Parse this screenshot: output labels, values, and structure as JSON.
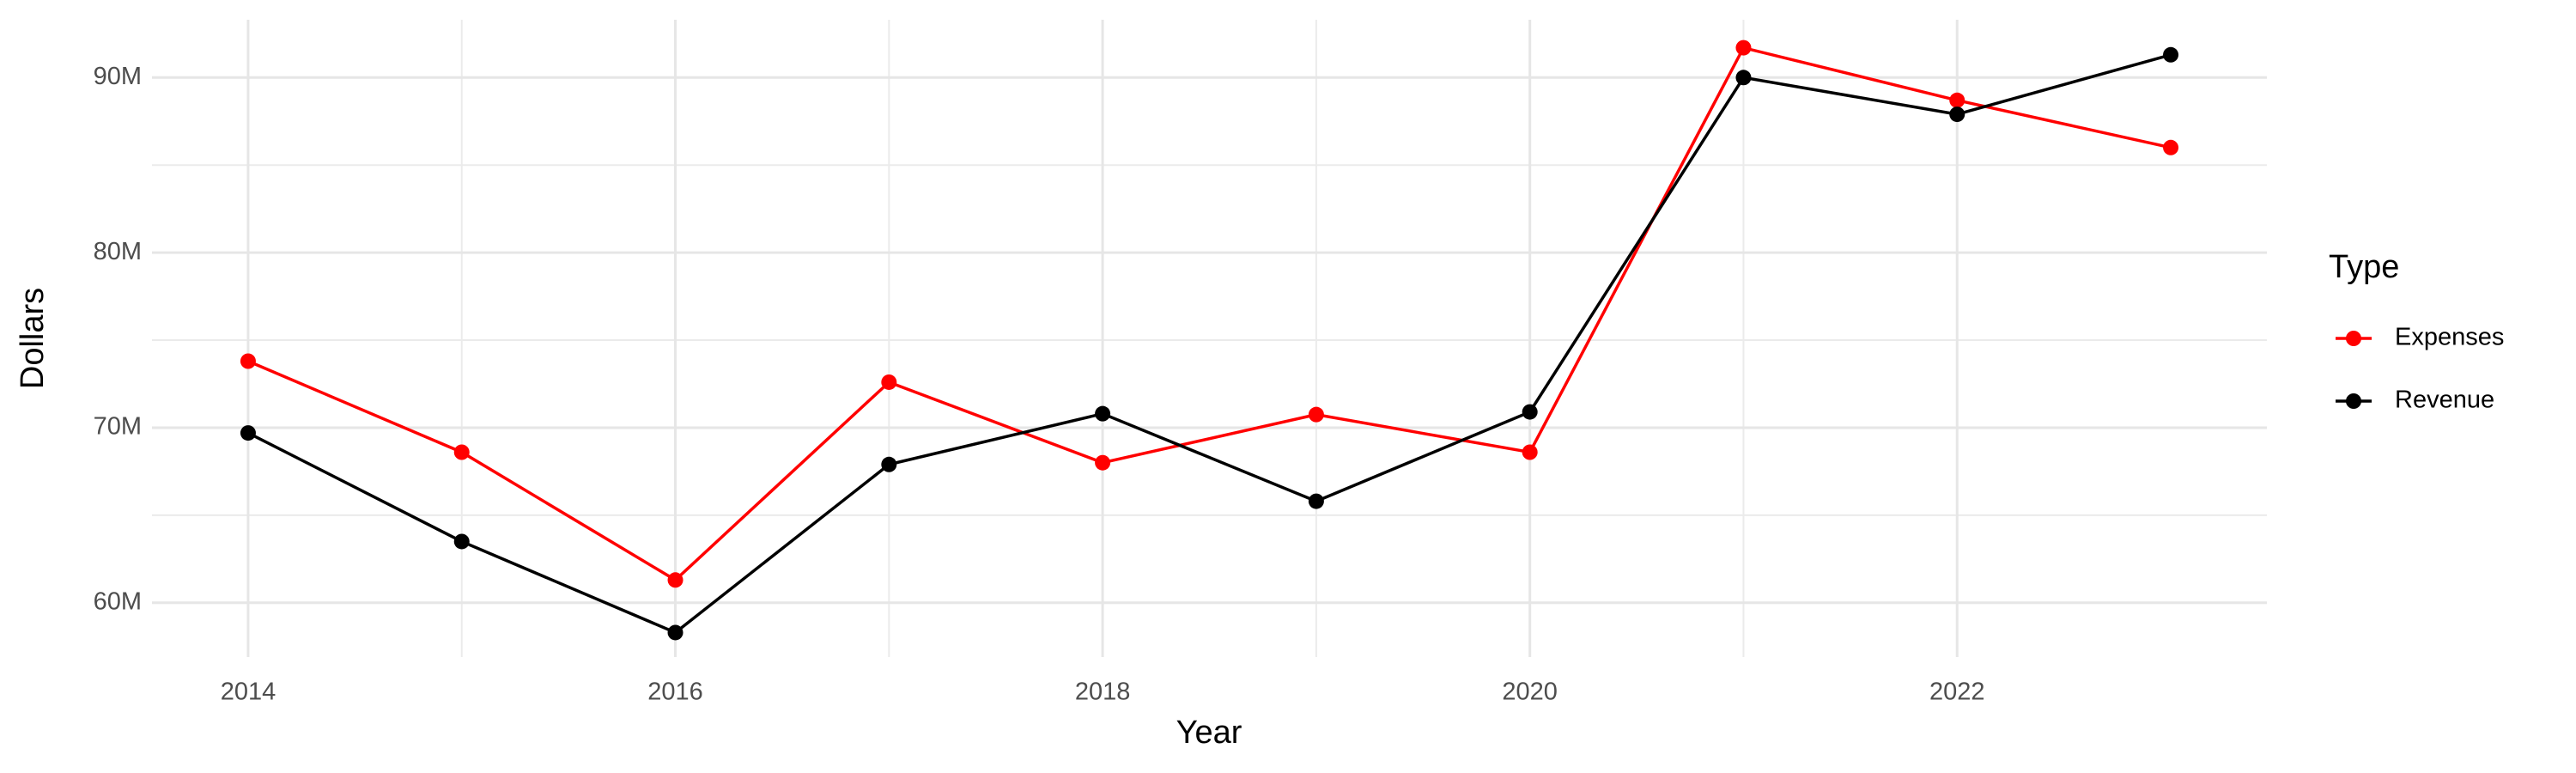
{
  "chart_data": {
    "type": "line",
    "x_label": "Year",
    "y_label": "Dollars",
    "legend_title": "Type",
    "legend_position": "right",
    "grid": true,
    "x": [
      2014,
      2015,
      2016,
      2017,
      2018,
      2019,
      2020,
      2021,
      2022,
      2023
    ],
    "series": [
      {
        "name": "Expenses",
        "color": "#ff0000",
        "values": [
          73800000,
          68600000,
          61300000,
          72600000,
          68000000,
          70750000,
          68600000,
          91700000,
          88700000,
          86000000
        ]
      },
      {
        "name": "Revenue",
        "color": "#000000",
        "values": [
          69700000,
          63500000,
          58300000,
          67900000,
          70800000,
          65800000,
          70900000,
          90000000,
          87900000,
          91300000
        ]
      }
    ],
    "xlim": [
      2013.55,
      2023.45
    ],
    "xticks": [
      2014,
      2016,
      2018,
      2020,
      2022
    ],
    "ylim": [
      56900000,
      93300000
    ],
    "yticks": [
      {
        "value": 60000000,
        "label": "60M"
      },
      {
        "value": 70000000,
        "label": "70M"
      },
      {
        "value": 80000000,
        "label": "80M"
      },
      {
        "value": 90000000,
        "label": "90M"
      }
    ]
  }
}
